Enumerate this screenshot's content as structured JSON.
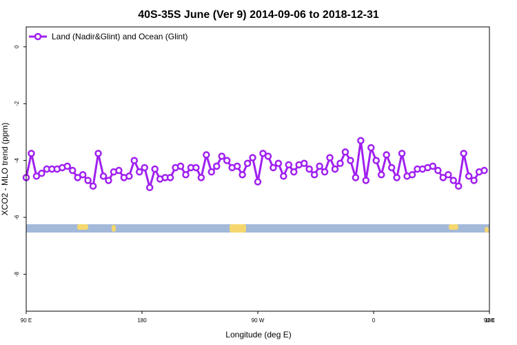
{
  "chart_data": {
    "type": "line",
    "title": "40S-35S June (Ver 9)   2014-09-06 to 2018-12-31",
    "xlabel": "Longitude (deg E)",
    "ylabel": "XCO2 - MLO trend (ppm)",
    "xlim": [
      90,
      450
    ],
    "ylim": [
      -9.3,
      0.7
    ],
    "y_ticks": [
      0,
      -2,
      -4,
      -6,
      -8
    ],
    "y_tick_labels": [
      "0",
      "-2",
      "-4",
      "-6",
      "-8"
    ],
    "x_ticks": [
      90,
      180,
      270,
      360,
      450
    ],
    "x_tick_labels": [
      "90 E",
      "180",
      "90 W",
      "0",
      "90 E",
      "180"
    ],
    "x_tick_positions": [
      90,
      180,
      270,
      360,
      450,
      540
    ],
    "legend": {
      "position": "top-left",
      "entries": [
        "Land (Nadir&Glint) and Ocean (Glint)"
      ]
    },
    "grid": false,
    "colors": {
      "series": "#a020f0",
      "map_ocean": "#a3b9d9",
      "map_land": "#f5d76e"
    },
    "series": [
      {
        "name": "Land (Nadir&Glint) and Ocean (Glint)",
        "x": [
          90,
          94,
          98,
          102,
          106,
          110,
          114,
          118,
          122,
          126,
          130,
          134,
          138,
          142,
          146,
          150,
          154,
          158,
          162,
          166,
          170,
          174,
          178,
          182,
          186,
          190,
          194,
          198,
          202,
          206,
          210,
          214,
          218,
          222,
          226,
          230,
          234,
          238,
          242,
          246,
          250,
          254,
          258,
          262,
          266,
          270,
          274,
          278,
          282,
          286,
          290,
          294,
          298,
          302,
          306,
          310,
          314,
          318,
          322,
          326,
          330,
          334,
          338,
          342,
          346,
          350,
          354,
          358,
          362,
          366,
          370,
          374,
          378,
          382,
          386,
          390,
          394,
          398,
          402,
          406,
          410,
          414,
          418,
          422,
          426,
          430,
          434,
          438,
          442,
          446
        ],
        "values": [
          -4.6,
          -3.75,
          -4.55,
          -4.45,
          -4.3,
          -4.3,
          -4.3,
          -4.25,
          -4.2,
          -4.35,
          -4.6,
          -4.5,
          -4.7,
          -4.9,
          -3.75,
          -4.55,
          -4.7,
          -4.4,
          -4.35,
          -4.6,
          -4.55,
          -4.0,
          -4.4,
          -4.25,
          -4.95,
          -4.3,
          -4.65,
          -4.6,
          -4.6,
          -4.25,
          -4.2,
          -4.5,
          -4.25,
          -4.25,
          -4.6,
          -3.8,
          -4.4,
          -4.2,
          -3.85,
          -4.0,
          -4.25,
          -4.2,
          -4.5,
          -4.1,
          -3.9,
          -4.75,
          -3.75,
          -3.85,
          -4.25,
          -4.1,
          -4.55,
          -4.15,
          -4.4,
          -4.15,
          -4.1,
          -4.3,
          -4.5,
          -4.2,
          -4.4,
          -3.9,
          -4.3,
          -4.1,
          -3.7,
          -4.0,
          -4.6,
          -3.3,
          -4.7,
          -3.55,
          -4.0,
          -4.5,
          -3.8,
          -4.25,
          -4.6,
          -3.75,
          -4.55,
          -4.5,
          -4.3,
          -4.3,
          -4.25,
          -4.2,
          -4.35,
          -4.6,
          -4.5,
          -4.7,
          -4.9,
          -3.75,
          -4.55,
          -4.7,
          -4.4,
          -4.35
        ]
      }
    ]
  }
}
